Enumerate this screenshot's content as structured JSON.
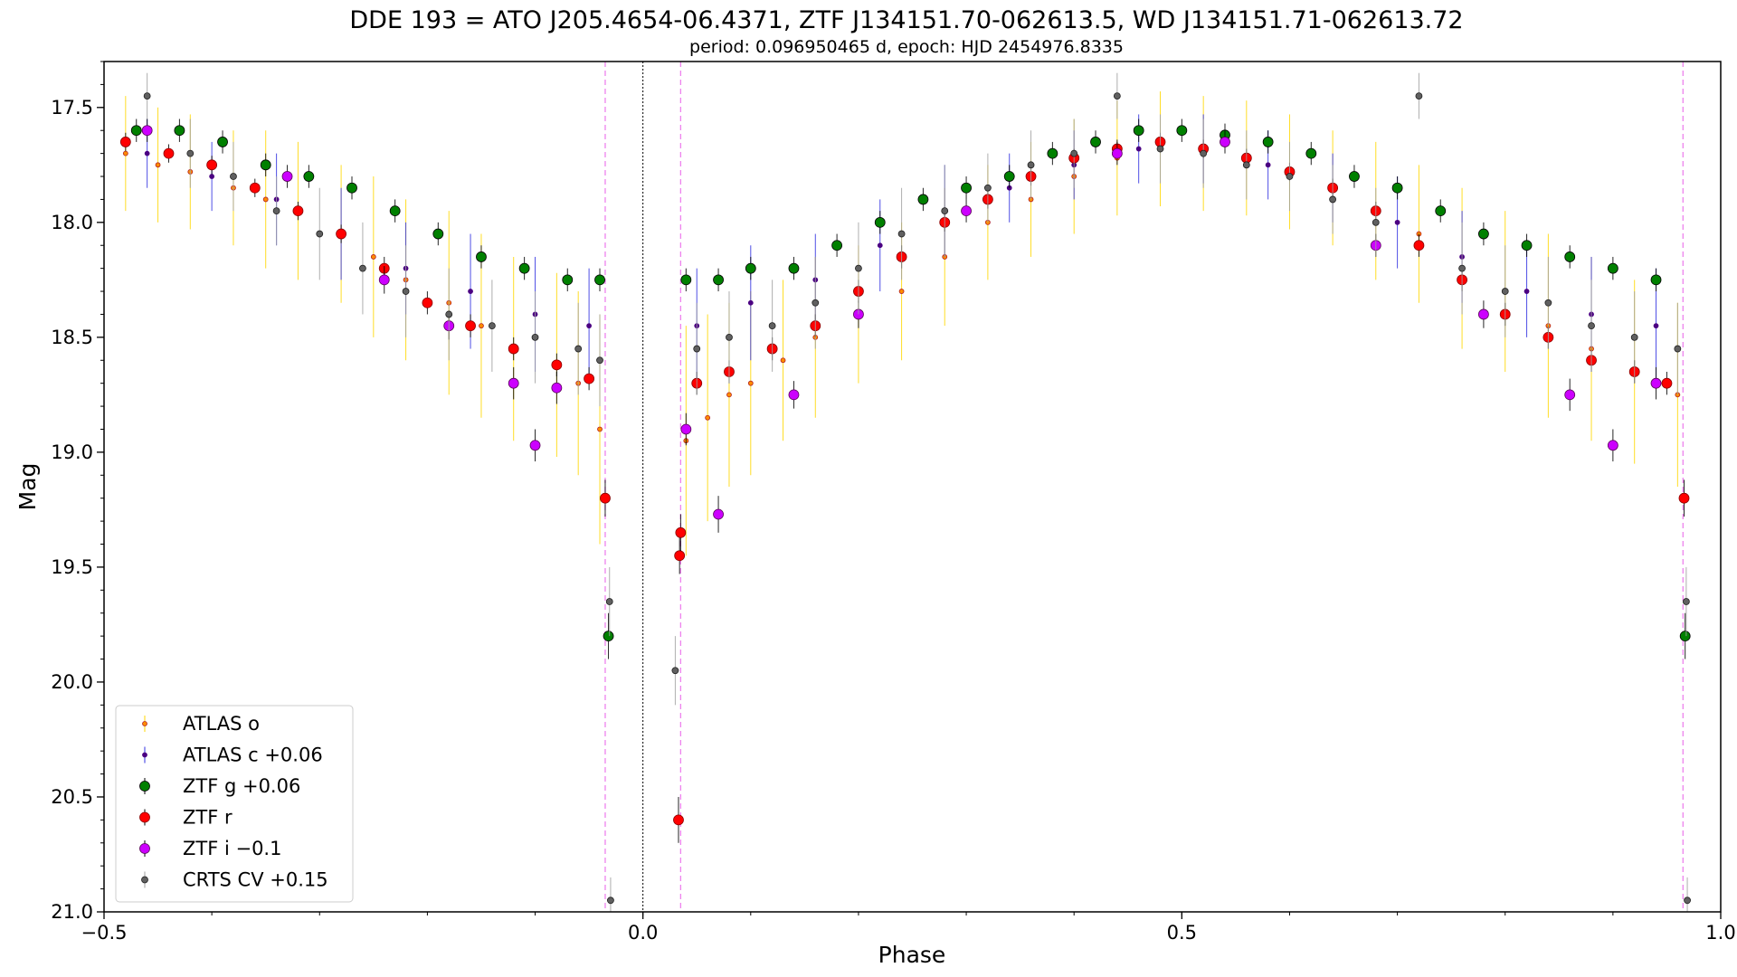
{
  "chart_data": {
    "type": "scatter",
    "title": "DDE 193 = ATO J205.4654-06.4371, ZTF J134151.70-062613.5, WD J134151.71-062613.72",
    "subtitle": "period: 0.096950465 d, epoch: HJD 2454976.8335",
    "xlabel": "Phase",
    "ylabel": "Mag",
    "xlim": [
      -0.5,
      1.0
    ],
    "ylim": [
      21.0,
      17.3
    ],
    "y_inverted": true,
    "xticks": [
      -0.5,
      0.0,
      0.5,
      1.0
    ],
    "xtick_labels": [
      "−0.5",
      "0.0",
      "0.5",
      "1.0"
    ],
    "yticks": [
      17.5,
      18.0,
      18.5,
      19.0,
      19.5,
      20.0,
      20.5,
      21.0
    ],
    "ytick_labels": [
      "17.5",
      "18.0",
      "18.5",
      "19.0",
      "19.5",
      "20.0",
      "20.5",
      "21.0"
    ],
    "zero_line": 0.0,
    "eclipse_markers": [
      -0.035,
      0.035,
      0.965
    ],
    "legend_position": "lower-left",
    "series": [
      {
        "name": "ATLAS o",
        "marker_color": "#ff8c00",
        "edge_color": "#b22222",
        "error_color": "#ffd700",
        "size": 2.5,
        "x": [
          -0.48,
          -0.45,
          -0.42,
          -0.38,
          -0.35,
          -0.32,
          -0.28,
          -0.25,
          -0.22,
          -0.18,
          -0.15,
          -0.12,
          -0.08,
          -0.06,
          -0.04,
          0.04,
          0.06,
          0.08,
          0.1,
          0.13,
          0.16,
          0.2,
          0.24,
          0.28,
          0.32,
          0.36,
          0.4,
          0.44,
          0.48,
          0.52,
          0.56,
          0.6,
          0.64,
          0.68,
          0.72,
          0.76,
          0.8,
          0.84,
          0.88,
          0.92,
          0.96
        ],
        "y": [
          17.7,
          17.75,
          17.78,
          17.85,
          17.9,
          17.95,
          18.05,
          18.15,
          18.25,
          18.35,
          18.45,
          18.55,
          18.62,
          18.7,
          18.9,
          18.95,
          18.85,
          18.75,
          18.7,
          18.6,
          18.5,
          18.4,
          18.3,
          18.15,
          18.0,
          17.9,
          17.8,
          17.72,
          17.68,
          17.7,
          17.72,
          17.78,
          17.85,
          17.95,
          18.05,
          18.2,
          18.3,
          18.45,
          18.55,
          18.65,
          18.75
        ],
        "err": [
          0.25,
          0.25,
          0.25,
          0.25,
          0.3,
          0.3,
          0.3,
          0.35,
          0.35,
          0.4,
          0.4,
          0.4,
          0.4,
          0.4,
          0.5,
          0.5,
          0.45,
          0.4,
          0.4,
          0.35,
          0.35,
          0.3,
          0.3,
          0.3,
          0.25,
          0.25,
          0.25,
          0.25,
          0.25,
          0.25,
          0.25,
          0.25,
          0.25,
          0.3,
          0.3,
          0.35,
          0.35,
          0.4,
          0.4,
          0.4,
          0.4
        ]
      },
      {
        "name": "ATLAS c +0.06",
        "marker_color": "#4b0082",
        "edge_color": "#4b0082",
        "error_color": "#3030e0",
        "size": 2.5,
        "x": [
          -0.46,
          -0.4,
          -0.34,
          -0.28,
          -0.22,
          -0.16,
          -0.1,
          -0.05,
          0.05,
          0.1,
          0.16,
          0.22,
          0.28,
          0.34,
          0.4,
          0.46,
          0.52,
          0.58,
          0.64,
          0.7,
          0.76,
          0.82,
          0.88,
          0.94
        ],
        "y": [
          17.7,
          17.8,
          17.9,
          18.05,
          18.2,
          18.3,
          18.4,
          18.45,
          18.45,
          18.35,
          18.25,
          18.1,
          17.95,
          17.85,
          17.75,
          17.68,
          17.68,
          17.75,
          17.85,
          18.0,
          18.15,
          18.3,
          18.4,
          18.45
        ],
        "err": [
          0.15,
          0.15,
          0.2,
          0.2,
          0.2,
          0.25,
          0.25,
          0.25,
          0.25,
          0.25,
          0.2,
          0.2,
          0.2,
          0.15,
          0.15,
          0.15,
          0.15,
          0.15,
          0.15,
          0.2,
          0.2,
          0.2,
          0.25,
          0.25
        ]
      },
      {
        "name": "ZTF g +0.06",
        "marker_color": "#008000",
        "edge_color": "#000000",
        "error_color": "#000000",
        "size": 5.5,
        "x": [
          -0.47,
          -0.43,
          -0.39,
          -0.35,
          -0.31,
          -0.27,
          -0.23,
          -0.19,
          -0.15,
          -0.11,
          -0.07,
          -0.04,
          -0.032,
          0.04,
          0.07,
          0.1,
          0.14,
          0.18,
          0.22,
          0.26,
          0.3,
          0.34,
          0.38,
          0.42,
          0.46,
          0.5,
          0.54,
          0.58,
          0.62,
          0.66,
          0.7,
          0.74,
          0.78,
          0.82,
          0.86,
          0.9,
          0.94,
          0.967
        ],
        "y": [
          17.6,
          17.6,
          17.65,
          17.75,
          17.8,
          17.85,
          17.95,
          18.05,
          18.15,
          18.2,
          18.25,
          18.25,
          19.8,
          18.25,
          18.25,
          18.2,
          18.2,
          18.1,
          18.0,
          17.9,
          17.85,
          17.8,
          17.7,
          17.65,
          17.6,
          17.6,
          17.62,
          17.65,
          17.7,
          17.8,
          17.85,
          17.95,
          18.05,
          18.1,
          18.15,
          18.2,
          18.25,
          19.8
        ],
        "err": [
          0.05,
          0.05,
          0.05,
          0.05,
          0.05,
          0.05,
          0.05,
          0.05,
          0.05,
          0.05,
          0.05,
          0.05,
          0.1,
          0.05,
          0.05,
          0.05,
          0.05,
          0.05,
          0.05,
          0.05,
          0.05,
          0.05,
          0.05,
          0.05,
          0.05,
          0.05,
          0.05,
          0.05,
          0.05,
          0.05,
          0.05,
          0.05,
          0.05,
          0.05,
          0.05,
          0.05,
          0.05,
          0.1
        ]
      },
      {
        "name": "ZTF r",
        "marker_color": "#ff0000",
        "edge_color": "#8b0000",
        "error_color": "#000000",
        "size": 5.5,
        "x": [
          -0.48,
          -0.44,
          -0.4,
          -0.36,
          -0.32,
          -0.28,
          -0.24,
          -0.2,
          -0.16,
          -0.12,
          -0.08,
          -0.05,
          -0.035,
          0.033,
          0.034,
          0.035,
          0.05,
          0.08,
          0.12,
          0.16,
          0.2,
          0.24,
          0.28,
          0.32,
          0.36,
          0.4,
          0.44,
          0.48,
          0.52,
          0.56,
          0.6,
          0.64,
          0.68,
          0.72,
          0.76,
          0.8,
          0.84,
          0.88,
          0.92,
          0.95,
          0.966
        ],
        "y": [
          17.65,
          17.7,
          17.75,
          17.85,
          17.95,
          18.05,
          18.2,
          18.35,
          18.45,
          18.55,
          18.62,
          18.68,
          19.2,
          20.6,
          19.45,
          19.35,
          18.7,
          18.65,
          18.55,
          18.45,
          18.3,
          18.15,
          18.0,
          17.9,
          17.8,
          17.72,
          17.68,
          17.65,
          17.68,
          17.72,
          17.78,
          17.85,
          17.95,
          18.1,
          18.25,
          18.4,
          18.5,
          18.6,
          18.65,
          18.7,
          19.2
        ],
        "err": [
          0.04,
          0.04,
          0.04,
          0.04,
          0.04,
          0.04,
          0.05,
          0.05,
          0.05,
          0.05,
          0.05,
          0.05,
          0.08,
          0.1,
          0.08,
          0.08,
          0.05,
          0.05,
          0.05,
          0.05,
          0.05,
          0.05,
          0.04,
          0.04,
          0.04,
          0.04,
          0.04,
          0.04,
          0.04,
          0.04,
          0.04,
          0.04,
          0.04,
          0.05,
          0.05,
          0.05,
          0.05,
          0.05,
          0.05,
          0.05,
          0.08
        ]
      },
      {
        "name": "ZTF i −0.1",
        "marker_color": "#cc00ff",
        "edge_color": "#5a005a",
        "error_color": "#000000",
        "size": 5.5,
        "x": [
          -0.46,
          -0.33,
          -0.24,
          -0.18,
          -0.12,
          -0.1,
          -0.08,
          0.04,
          0.07,
          0.14,
          0.2,
          0.3,
          0.44,
          0.54,
          0.68,
          0.78,
          0.86,
          0.9,
          0.94
        ],
        "y": [
          17.6,
          17.8,
          18.25,
          18.45,
          18.7,
          18.97,
          18.72,
          18.9,
          19.27,
          18.75,
          18.4,
          17.95,
          17.7,
          17.65,
          18.1,
          18.4,
          18.75,
          18.97,
          18.7
        ],
        "err": [
          0.05,
          0.05,
          0.06,
          0.06,
          0.07,
          0.07,
          0.07,
          0.07,
          0.08,
          0.06,
          0.06,
          0.05,
          0.05,
          0.05,
          0.05,
          0.06,
          0.07,
          0.07,
          0.07
        ]
      },
      {
        "name": "CRTS CV +0.15",
        "marker_color": "#606060",
        "edge_color": "#202020",
        "error_color": "#a0a0a0",
        "size": 3.5,
        "x": [
          -0.46,
          -0.42,
          -0.38,
          -0.34,
          -0.3,
          -0.26,
          -0.22,
          -0.18,
          -0.14,
          -0.1,
          -0.06,
          -0.04,
          -0.031,
          -0.03,
          0.03,
          0.05,
          0.08,
          0.12,
          0.16,
          0.2,
          0.24,
          0.28,
          0.32,
          0.36,
          0.4,
          0.44,
          0.48,
          0.52,
          0.56,
          0.6,
          0.64,
          0.68,
          0.72,
          0.76,
          0.8,
          0.84,
          0.88,
          0.92,
          0.96,
          0.968,
          0.969
        ],
        "y": [
          17.45,
          17.7,
          17.8,
          17.95,
          18.05,
          18.2,
          18.3,
          18.4,
          18.45,
          18.5,
          18.55,
          18.6,
          19.65,
          20.95,
          19.95,
          18.55,
          18.5,
          18.45,
          18.35,
          18.2,
          18.05,
          17.95,
          17.85,
          17.75,
          17.7,
          17.45,
          17.68,
          17.7,
          17.75,
          17.8,
          17.9,
          18.0,
          17.45,
          18.2,
          18.3,
          18.35,
          18.45,
          18.5,
          18.55,
          19.65,
          20.95
        ],
        "err": [
          0.1,
          0.15,
          0.15,
          0.15,
          0.2,
          0.2,
          0.2,
          0.2,
          0.2,
          0.2,
          0.2,
          0.2,
          0.15,
          0.1,
          0.15,
          0.2,
          0.2,
          0.2,
          0.2,
          0.2,
          0.2,
          0.2,
          0.15,
          0.15,
          0.15,
          0.1,
          0.15,
          0.15,
          0.15,
          0.15,
          0.15,
          0.15,
          0.1,
          0.2,
          0.2,
          0.2,
          0.2,
          0.2,
          0.2,
          0.15,
          0.1
        ]
      }
    ]
  }
}
